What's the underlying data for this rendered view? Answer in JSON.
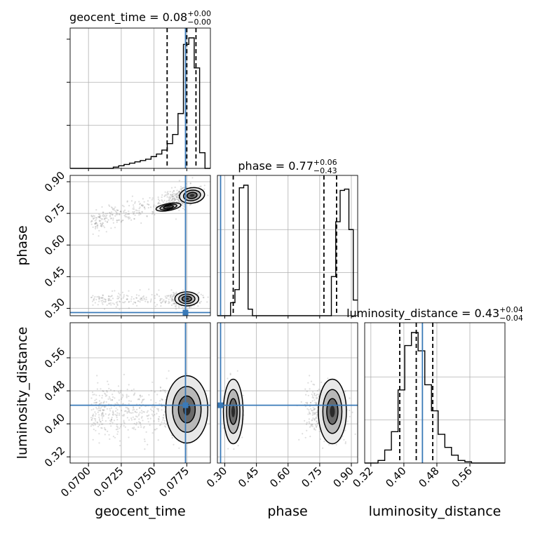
{
  "chart_data": {
    "type": "corner",
    "parameters": [
      "geocent_time",
      "phase",
      "luminosity_distance"
    ],
    "truths": [
      0.0774,
      0.28,
      0.445
    ],
    "colors": {
      "truth": "#3a7ab8",
      "hist": "#000000",
      "grid": "#b0b0b0",
      "scatter": "#7a7a7a"
    },
    "grid": true,
    "titles": [
      {
        "label": "geocent_time = 0.08",
        "sup": "+0.00",
        "sub": "−0.00"
      },
      {
        "label": "phase = 0.77",
        "sup": "+0.06",
        "sub": "−0.43"
      },
      {
        "label": "luminosity_distance = 0.43",
        "sup": "+0.04",
        "sub": "−0.04"
      }
    ],
    "axis_labels": {
      "geocent_time": "geocent_time",
      "phase": "phase",
      "luminosity_distance": "luminosity_distance"
    },
    "ranges": {
      "geocent_time": [
        0.0686,
        0.0793
      ],
      "phase": [
        0.265,
        0.93
      ],
      "luminosity_distance": [
        0.305,
        0.645
      ]
    },
    "ticks": {
      "geocent_time": [
        "0.0700",
        "0.0725",
        "0.0750",
        "0.0775"
      ],
      "phase": [
        "0.30",
        "0.45",
        "0.60",
        "0.75",
        "0.90"
      ],
      "luminosity_distance": [
        "0.32",
        "0.40",
        "0.48",
        "0.56"
      ]
    },
    "quantiles": {
      "geocent_time": [
        0.076,
        0.0775,
        0.0782
      ],
      "phase": [
        0.34,
        0.77,
        0.83
      ],
      "luminosity_distance": [
        0.39,
        0.43,
        0.47
      ]
    },
    "histograms": {
      "geocent_time": [
        0,
        0,
        0,
        0,
        0,
        0,
        0,
        0,
        1,
        2,
        3,
        4,
        5,
        6,
        7,
        9,
        11,
        14,
        19,
        26,
        42,
        95,
        100,
        77,
        12,
        0
      ],
      "phase": [
        0,
        0,
        0,
        10,
        20,
        98,
        100,
        5,
        0,
        0,
        0,
        0,
        0,
        0,
        0,
        0,
        0,
        0,
        0,
        0,
        0,
        0,
        0,
        0,
        0,
        0,
        30,
        72,
        96,
        97,
        66,
        12
      ],
      "luminosity_distance": [
        0,
        0,
        2,
        10,
        24,
        56,
        90,
        100,
        86,
        60,
        40,
        22,
        12,
        6,
        2,
        1,
        0,
        0,
        0,
        0,
        0
      ]
    }
  }
}
